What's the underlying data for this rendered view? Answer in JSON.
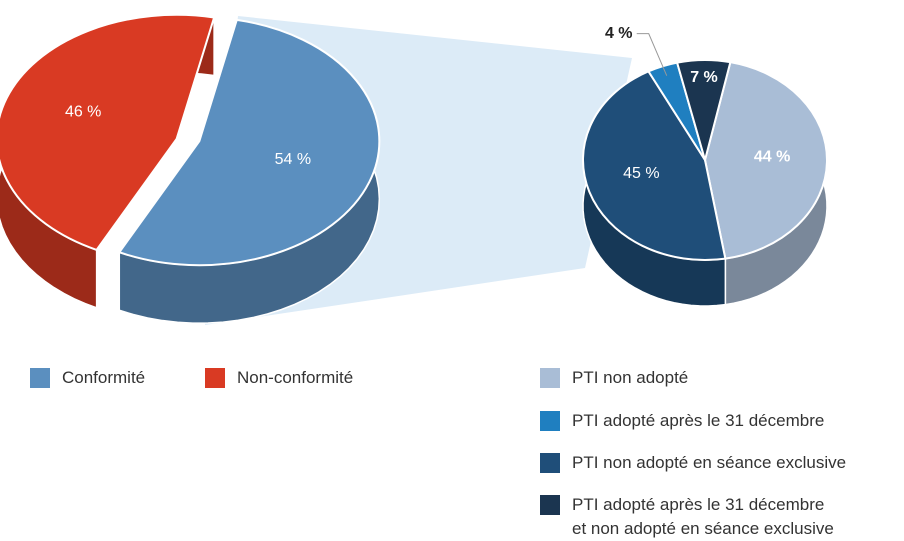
{
  "chart_data": [
    {
      "type": "pie",
      "categories": [
        "Conformité",
        "Non-conformité"
      ],
      "values": [
        54,
        46
      ],
      "value_labels": [
        "54 %",
        "46 %"
      ],
      "colors": [
        "#5b8fbf",
        "#d93a23"
      ]
    },
    {
      "type": "pie",
      "categories": [
        "PTI non adopté",
        "PTI non adopté en séance exclusive",
        "PTI adopté après le 31 décembre",
        "PTI adopté après le 31 décembre\net non adopté en séance exclusive"
      ],
      "values": [
        44,
        45,
        4,
        7
      ],
      "value_labels": [
        "44 %",
        "45 %",
        "4 %",
        "7 %"
      ],
      "colors": [
        "#a9bdd6",
        "#1f4e79",
        "#1f7fc0",
        "#1b3550"
      ]
    }
  ]
}
